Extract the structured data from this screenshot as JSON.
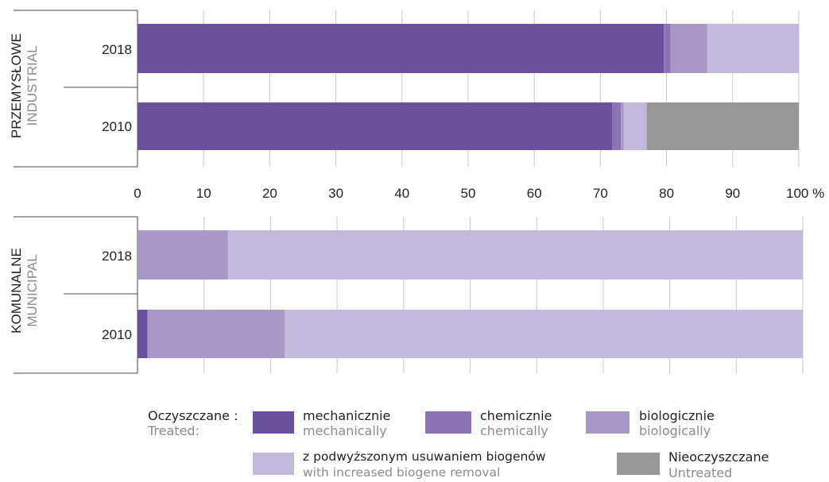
{
  "colors": {
    "mechanicznie": "#6a4f9e",
    "chemicznie": "#8b73b4",
    "biologicznie": "#a897c7",
    "z_podwyzszonym": "#c3b9dc",
    "nieoczyszczane": "#97979a",
    "grid": "#c8c8c8",
    "axis": "#444444"
  },
  "chart_data": [
    {
      "type": "bar",
      "orientation": "horizontal",
      "stacked": true,
      "group_label": "PRZEMYSŁOWE",
      "group_label_en": "INDUSTRIAL",
      "categories": [
        "2018",
        "2010"
      ],
      "xlim": [
        0,
        100
      ],
      "xticks": [
        "0",
        "10",
        "20",
        "30",
        "40",
        "50",
        "60",
        "70",
        "80",
        "90",
        "100 %"
      ],
      "series": [
        {
          "name": "mechanicznie",
          "values": [
            79.6,
            71.8
          ]
        },
        {
          "name": "chemicznie",
          "values": [
            1.0,
            1.3
          ]
        },
        {
          "name": "biologicznie",
          "values": [
            5.6,
            0.4
          ]
        },
        {
          "name": "z podwyższonym usuwaniem biogenów",
          "values": [
            13.8,
            3.5
          ]
        },
        {
          "name": "Nieoczyszczane",
          "values": [
            0,
            23.0
          ]
        }
      ]
    },
    {
      "type": "bar",
      "orientation": "horizontal",
      "stacked": true,
      "group_label": "KOMUNALNE",
      "group_label_en": "MUNICIPAL",
      "categories": [
        "2018",
        "2010"
      ],
      "xlim": [
        0,
        100
      ],
      "series": [
        {
          "name": "mechanicznie",
          "values": [
            0,
            1.5
          ]
        },
        {
          "name": "chemicznie",
          "values": [
            0,
            0
          ]
        },
        {
          "name": "biologicznie",
          "values": [
            13.6,
            20.6
          ]
        },
        {
          "name": "z podwyższonym usuwaniem biogenów",
          "values": [
            86.4,
            77.9
          ]
        },
        {
          "name": "Nieoczyszczane",
          "values": [
            0,
            0
          ]
        }
      ]
    }
  ],
  "legend": {
    "title": "Oczyszczane :",
    "title_en": "Treated:",
    "items": [
      {
        "key": "mechanicznie",
        "label": "mechanicznie",
        "label_en": "mechanically"
      },
      {
        "key": "chemicznie",
        "label": "chemicznie",
        "label_en": "chemically"
      },
      {
        "key": "biologicznie",
        "label": "biologicznie",
        "label_en": "biologically"
      },
      {
        "key": "z_podwyzszonym",
        "label": "z podwyższonym usuwaniem biogenów",
        "label_en": "with increased biogene removal"
      },
      {
        "key": "nieoczyszczane",
        "label": "Nieoczyszczane",
        "label_en": "Untreated"
      }
    ]
  }
}
